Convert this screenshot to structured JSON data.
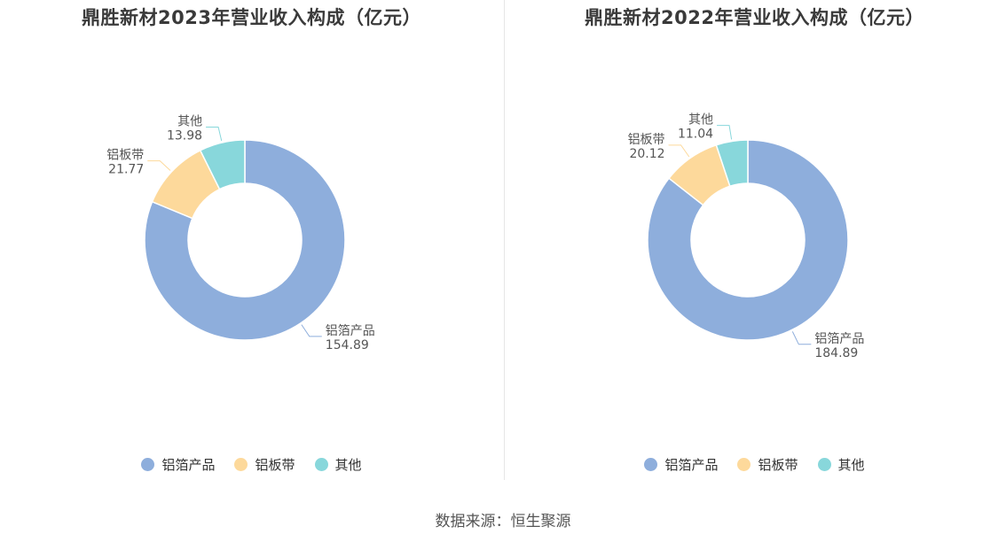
{
  "chart_data": [
    {
      "type": "pie",
      "title": "鼎胜新材2023年营业收入构成（亿元）",
      "categories": [
        "铝箔产品",
        "铝板带",
        "其他"
      ],
      "values": [
        154.89,
        21.77,
        13.98
      ],
      "value_labels": [
        "154.89",
        "21.77",
        "13.98"
      ],
      "colors": [
        "#8eaedc",
        "#fdd99b",
        "#88d7db"
      ],
      "legend_position": "bottom"
    },
    {
      "type": "pie",
      "title": "鼎胜新材2022年营业收入构成（亿元）",
      "categories": [
        "铝箔产品",
        "铝板带",
        "其他"
      ],
      "values": [
        184.89,
        20.12,
        11.04
      ],
      "value_labels": [
        "184.89",
        "20.12",
        "11.04"
      ],
      "colors": [
        "#8eaedc",
        "#fdd99b",
        "#88d7db"
      ],
      "legend_position": "bottom"
    }
  ],
  "source": "数据来源：恒生聚源"
}
